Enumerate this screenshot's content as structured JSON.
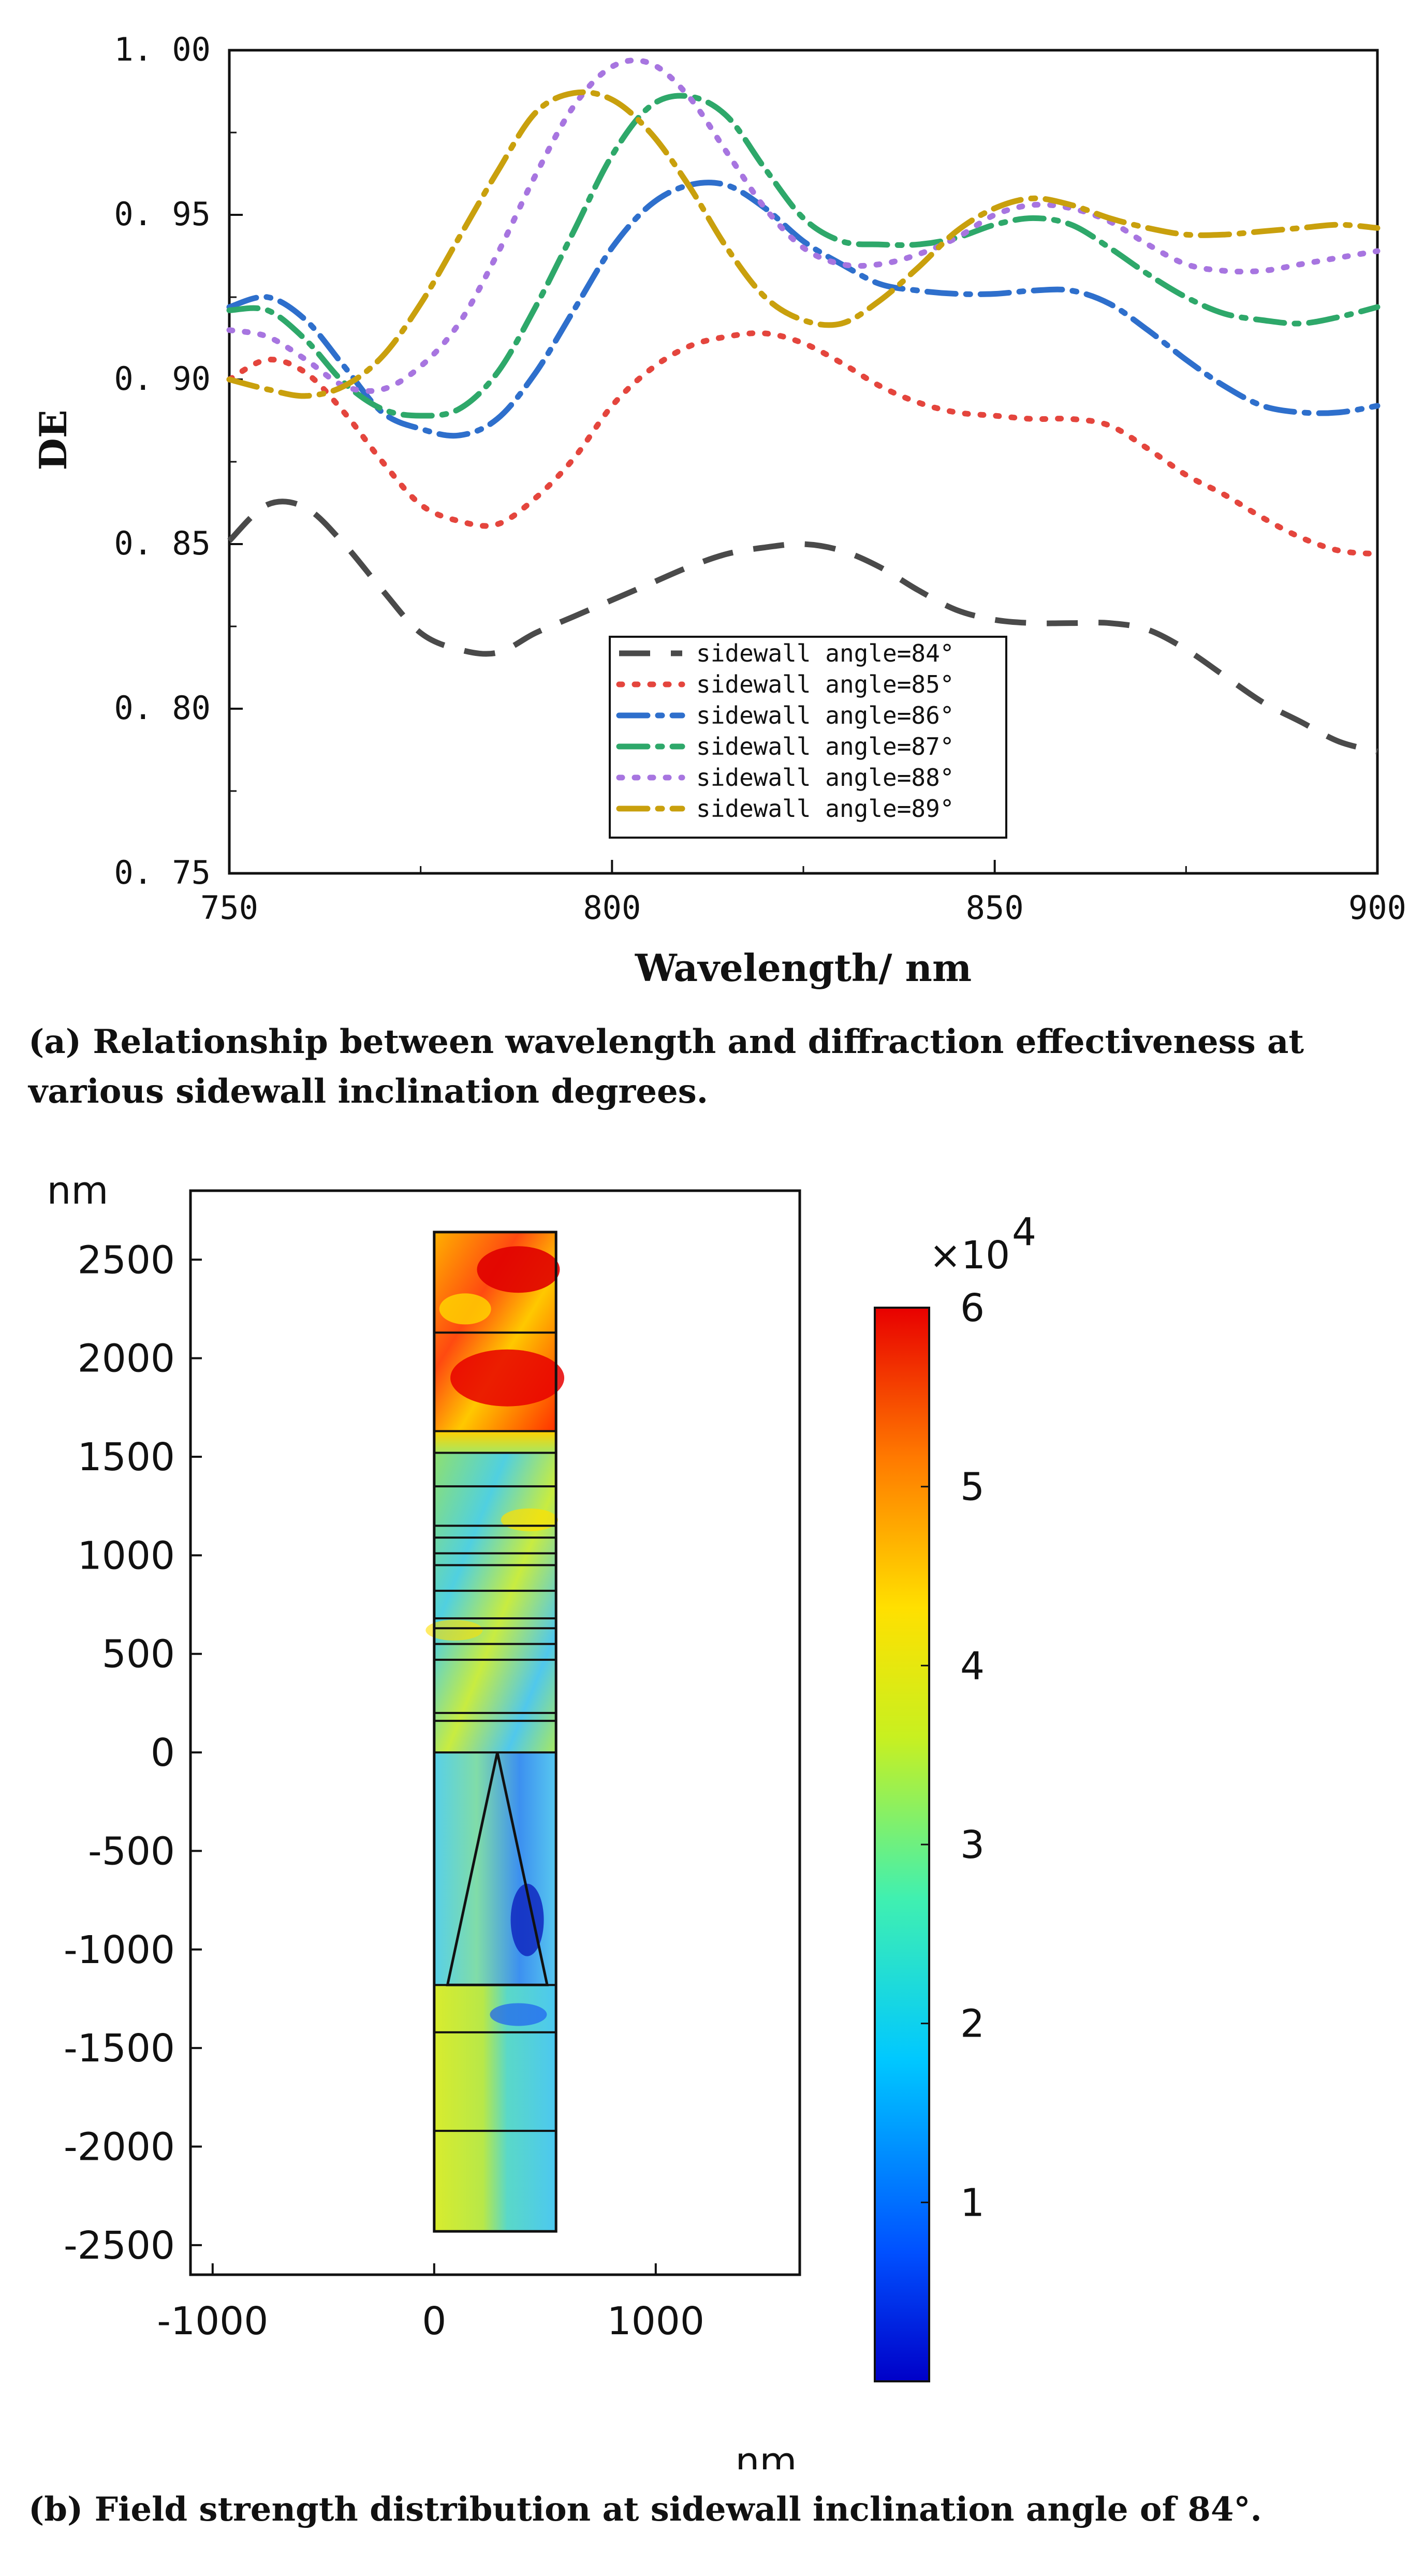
{
  "chart_data": [
    {
      "id": "a",
      "type": "line",
      "title": "",
      "xlabel": "Wavelength/ nm",
      "ylabel": "DE",
      "xlim": [
        750,
        900
      ],
      "ylim": [
        0.75,
        1.0
      ],
      "xticks": [
        750,
        800,
        850,
        900
      ],
      "xtick_labels": [
        "750",
        "800",
        "850",
        "900"
      ],
      "yticks": [
        0.75,
        0.8,
        0.85,
        0.9,
        0.95,
        1.0
      ],
      "ytick_labels": [
        "0. 75",
        "0. 80",
        "0. 85",
        "0. 90",
        "0. 95",
        "1. 00"
      ],
      "grid": false,
      "legend_position": "bottom-center",
      "x": [
        750,
        755,
        760,
        765,
        770,
        775,
        780,
        785,
        790,
        795,
        800,
        805,
        810,
        815,
        820,
        825,
        830,
        835,
        840,
        845,
        850,
        855,
        860,
        865,
        870,
        875,
        880,
        885,
        890,
        895,
        900
      ],
      "series": [
        {
          "name": "sidewall angle=84°",
          "color": "#4a4a4a",
          "dash": "long-dash",
          "values": [
            0.851,
            0.862,
            0.861,
            0.85,
            0.836,
            0.823,
            0.818,
            0.817,
            0.823,
            0.828,
            0.833,
            0.838,
            0.843,
            0.847,
            0.849,
            0.85,
            0.848,
            0.843,
            0.836,
            0.83,
            0.827,
            0.826,
            0.826,
            0.826,
            0.824,
            0.818,
            0.81,
            0.802,
            0.796,
            0.79,
            0.787
          ]
        },
        {
          "name": "sidewall angle=85°",
          "color": "#e4453d",
          "dash": "dot",
          "values": [
            0.9,
            0.906,
            0.902,
            0.89,
            0.875,
            0.862,
            0.857,
            0.856,
            0.864,
            0.876,
            0.892,
            0.903,
            0.91,
            0.913,
            0.914,
            0.911,
            0.905,
            0.898,
            0.893,
            0.89,
            0.889,
            0.888,
            0.888,
            0.886,
            0.879,
            0.871,
            0.865,
            0.858,
            0.852,
            0.848,
            0.847
          ]
        },
        {
          "name": "sidewall angle=86°",
          "color": "#2e6fcc",
          "dash": "dash-dot",
          "values": [
            0.922,
            0.925,
            0.918,
            0.904,
            0.89,
            0.885,
            0.883,
            0.888,
            0.902,
            0.921,
            0.94,
            0.953,
            0.959,
            0.959,
            0.952,
            0.942,
            0.935,
            0.929,
            0.927,
            0.926,
            0.926,
            0.927,
            0.927,
            0.923,
            0.915,
            0.906,
            0.898,
            0.892,
            0.89,
            0.89,
            0.892
          ]
        },
        {
          "name": "sidewall angle=87°",
          "color": "#2ea86a",
          "dash": "dash-dot",
          "values": [
            0.921,
            0.921,
            0.912,
            0.899,
            0.891,
            0.889,
            0.891,
            0.902,
            0.922,
            0.945,
            0.968,
            0.983,
            0.986,
            0.98,
            0.964,
            0.949,
            0.942,
            0.941,
            0.941,
            0.943,
            0.947,
            0.949,
            0.947,
            0.94,
            0.932,
            0.925,
            0.92,
            0.918,
            0.917,
            0.919,
            0.922
          ]
        },
        {
          "name": "sidewall angle=88°",
          "color": "#a775e0",
          "dash": "dot",
          "values": [
            0.915,
            0.913,
            0.906,
            0.898,
            0.897,
            0.904,
            0.917,
            0.938,
            0.962,
            0.983,
            0.995,
            0.996,
            0.986,
            0.969,
            0.952,
            0.94,
            0.935,
            0.935,
            0.938,
            0.943,
            0.95,
            0.953,
            0.952,
            0.948,
            0.941,
            0.935,
            0.933,
            0.933,
            0.935,
            0.937,
            0.939
          ]
        },
        {
          "name": "sidewall angle=89°",
          "color": "#c9a00d",
          "dash": "dash-dot",
          "values": [
            0.9,
            0.897,
            0.895,
            0.898,
            0.907,
            0.923,
            0.943,
            0.963,
            0.981,
            0.987,
            0.985,
            0.975,
            0.959,
            0.94,
            0.925,
            0.918,
            0.917,
            0.924,
            0.934,
            0.945,
            0.952,
            0.955,
            0.953,
            0.949,
            0.946,
            0.944,
            0.944,
            0.945,
            0.946,
            0.947,
            0.946
          ]
        }
      ]
    },
    {
      "id": "b",
      "type": "heatmap",
      "xunit": "nm",
      "yunit": "nm",
      "xlim": [
        -1100,
        1650
      ],
      "ylim": [
        -2650,
        2850
      ],
      "xticks": [
        -1000,
        0,
        1000
      ],
      "xtick_labels": [
        "-1000",
        "0",
        "1000"
      ],
      "yticks": [
        2500,
        2000,
        1500,
        1000,
        500,
        0,
        -500,
        -1000,
        -1500,
        -2000,
        -2500
      ],
      "ytick_labels": [
        "2500",
        "2000",
        "1500",
        "1000",
        "500",
        "0",
        "-500",
        "-1000",
        "-1500",
        "-2000",
        "-2500"
      ],
      "domain_x": [
        0,
        550
      ],
      "domain_y": [
        -2430,
        2640
      ],
      "layer_boundaries_y": [
        2640,
        2130,
        1630,
        1520,
        1350,
        1150,
        1090,
        1010,
        950,
        820,
        680,
        630,
        550,
        470,
        200,
        160,
        0,
        -1180,
        -1420,
        -1920,
        -2430
      ],
      "grating_triangle": {
        "apex": [
          285,
          0
        ],
        "base_left": [
          60,
          -1180
        ],
        "base_right": [
          510,
          -1180
        ]
      },
      "colorbar": {
        "min": 0,
        "max": 6,
        "scale_label": "×10",
        "scale_exponent": "4",
        "ticks": [
          1,
          2,
          3,
          4,
          5,
          6
        ],
        "tick_labels": [
          "1",
          "2",
          "3",
          "4",
          "5",
          "6"
        ],
        "colormap": "jet"
      }
    }
  ],
  "captions": {
    "a": "(a) Relationship between wavelength and diffraction effectiveness at various sidewall inclination degrees.",
    "b": "(b) Field strength distribution at sidewall inclination angle of 84°."
  }
}
